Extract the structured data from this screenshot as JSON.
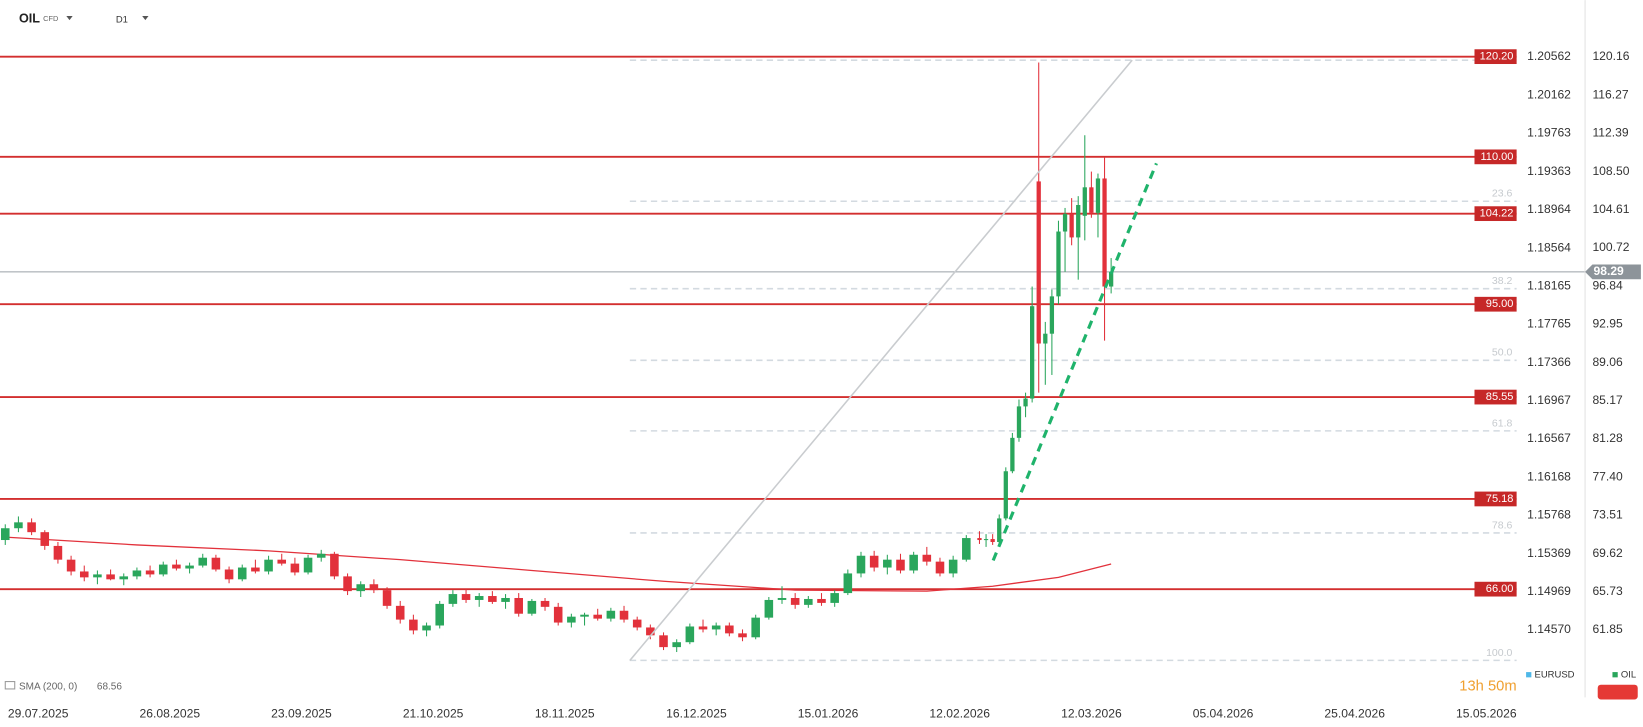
{
  "header": {
    "symbol": "OIL",
    "kind": "CFD",
    "interval": "D1"
  },
  "chart_data": {
    "type": "candlestick",
    "up_color": "#2aa65c",
    "down_color": "#e2313b",
    "x": [
      0,
      2,
      4,
      6,
      8,
      10,
      12,
      14,
      16,
      18,
      20,
      22,
      24,
      26,
      28,
      30,
      32,
      34,
      36,
      38,
      40,
      42,
      44,
      46,
      48,
      50,
      52,
      54,
      56,
      58,
      60,
      62,
      64,
      66,
      68,
      70,
      72,
      74,
      76,
      78,
      80,
      82,
      84,
      86,
      88,
      90,
      92,
      94,
      96,
      98,
      100,
      102,
      104,
      106,
      108,
      110,
      112,
      114,
      116,
      118,
      120,
      122,
      124,
      126,
      128,
      130,
      132,
      134,
      136,
      138,
      140,
      142,
      144,
      146,
      148,
      149,
      150,
      151,
      152,
      153,
      154,
      155,
      156,
      157,
      158,
      159,
      160,
      161,
      162,
      163,
      164,
      165,
      166,
      167,
      168
    ],
    "ohlc": [
      [
        71.0,
        72.6,
        70.5,
        72.2
      ],
      [
        72.2,
        73.4,
        71.8,
        72.8
      ],
      [
        72.8,
        73.2,
        71.5,
        71.8
      ],
      [
        71.8,
        72.0,
        70.0,
        70.4
      ],
      [
        70.4,
        70.8,
        68.6,
        69.0
      ],
      [
        69.0,
        69.4,
        67.4,
        67.8
      ],
      [
        67.8,
        68.4,
        66.8,
        67.2
      ],
      [
        67.2,
        67.9,
        66.5,
        67.5
      ],
      [
        67.5,
        68.0,
        66.9,
        67.0
      ],
      [
        67.0,
        67.6,
        66.4,
        67.3
      ],
      [
        67.3,
        68.2,
        67.0,
        67.9
      ],
      [
        67.9,
        68.4,
        67.2,
        67.5
      ],
      [
        67.5,
        68.8,
        67.3,
        68.5
      ],
      [
        68.5,
        69.0,
        67.9,
        68.1
      ],
      [
        68.1,
        68.7,
        67.6,
        68.4
      ],
      [
        68.4,
        69.6,
        68.2,
        69.2
      ],
      [
        69.2,
        69.5,
        67.8,
        68.0
      ],
      [
        68.0,
        68.3,
        66.6,
        67.0
      ],
      [
        67.0,
        68.5,
        66.8,
        68.2
      ],
      [
        68.2,
        69.0,
        67.6,
        67.8
      ],
      [
        67.8,
        69.4,
        67.5,
        69.0
      ],
      [
        69.0,
        69.6,
        68.4,
        68.6
      ],
      [
        68.6,
        69.2,
        67.4,
        67.7
      ],
      [
        67.7,
        69.5,
        67.5,
        69.2
      ],
      [
        69.2,
        70.0,
        68.8,
        69.6
      ],
      [
        69.6,
        69.8,
        67.0,
        67.3
      ],
      [
        67.3,
        67.6,
        65.4,
        65.8
      ],
      [
        65.8,
        66.8,
        65.2,
        66.5
      ],
      [
        66.5,
        67.0,
        65.6,
        65.9
      ],
      [
        65.9,
        66.2,
        64.0,
        64.3
      ],
      [
        64.3,
        64.8,
        62.5,
        62.9
      ],
      [
        62.9,
        63.4,
        61.4,
        61.8
      ],
      [
        61.8,
        62.6,
        61.2,
        62.3
      ],
      [
        62.3,
        64.8,
        62.0,
        64.5
      ],
      [
        64.5,
        65.9,
        64.2,
        65.5
      ],
      [
        65.5,
        66.0,
        64.6,
        64.9
      ],
      [
        64.9,
        65.6,
        64.2,
        65.3
      ],
      [
        65.3,
        65.8,
        64.5,
        64.7
      ],
      [
        64.7,
        65.5,
        64.0,
        65.1
      ],
      [
        65.1,
        65.6,
        63.2,
        63.5
      ],
      [
        63.5,
        65.0,
        63.3,
        64.8
      ],
      [
        64.8,
        65.1,
        63.8,
        64.2
      ],
      [
        64.2,
        64.6,
        62.3,
        62.6
      ],
      [
        62.6,
        63.5,
        62.1,
        63.2
      ],
      [
        63.2,
        63.6,
        62.3,
        63.4
      ],
      [
        63.4,
        64.0,
        62.8,
        63.0
      ],
      [
        63.0,
        64.1,
        62.7,
        63.8
      ],
      [
        63.8,
        64.3,
        62.6,
        62.9
      ],
      [
        62.9,
        63.2,
        61.8,
        62.1
      ],
      [
        62.1,
        62.4,
        60.9,
        61.3
      ],
      [
        61.3,
        61.6,
        59.8,
        60.1
      ],
      [
        60.1,
        60.9,
        59.6,
        60.6
      ],
      [
        60.6,
        62.5,
        60.4,
        62.2
      ],
      [
        62.2,
        62.9,
        61.6,
        61.9
      ],
      [
        61.9,
        62.6,
        61.3,
        62.3
      ],
      [
        62.3,
        62.6,
        61.2,
        61.5
      ],
      [
        61.5,
        61.9,
        60.7,
        61.1
      ],
      [
        61.1,
        63.4,
        60.9,
        63.1
      ],
      [
        63.1,
        65.2,
        62.9,
        64.9
      ],
      [
        64.9,
        66.3,
        64.5,
        65.1
      ],
      [
        65.1,
        65.6,
        64.0,
        64.4
      ],
      [
        64.4,
        65.3,
        64.1,
        65.0
      ],
      [
        65.0,
        65.6,
        64.3,
        64.6
      ],
      [
        64.6,
        65.9,
        64.2,
        65.6
      ],
      [
        65.6,
        68.0,
        65.4,
        67.6
      ],
      [
        67.6,
        69.8,
        67.2,
        69.4
      ],
      [
        69.4,
        69.9,
        67.8,
        68.2
      ],
      [
        68.2,
        69.5,
        67.5,
        69.0
      ],
      [
        69.0,
        69.6,
        67.6,
        67.9
      ],
      [
        67.9,
        69.8,
        67.6,
        69.5
      ],
      [
        69.5,
        70.3,
        68.4,
        68.8
      ],
      [
        68.8,
        69.2,
        67.3,
        67.6
      ],
      [
        67.6,
        69.4,
        67.2,
        69.0
      ],
      [
        69.0,
        71.5,
        68.8,
        71.2
      ],
      [
        71.2,
        71.9,
        70.6,
        71.0
      ],
      [
        71.0,
        71.6,
        70.3,
        71.1
      ],
      [
        71.1,
        71.6,
        70.5,
        70.8
      ],
      [
        70.8,
        73.6,
        70.6,
        73.2
      ],
      [
        73.2,
        78.4,
        73.0,
        78.0
      ],
      [
        78.0,
        81.9,
        77.8,
        81.4
      ],
      [
        81.4,
        85.3,
        81.0,
        84.6
      ],
      [
        84.6,
        86.0,
        83.5,
        85.4
      ],
      [
        85.4,
        96.8,
        85.0,
        94.8
      ],
      [
        107.5,
        119.6,
        86.0,
        91.0
      ],
      [
        91.0,
        93.2,
        86.8,
        92.0
      ],
      [
        92.0,
        96.5,
        87.8,
        95.8
      ],
      [
        95.8,
        103.5,
        95.0,
        102.4
      ],
      [
        102.4,
        104.8,
        98.3,
        104.2
      ],
      [
        104.2,
        105.8,
        101.0,
        101.8
      ],
      [
        101.8,
        106.0,
        97.5,
        105.1
      ],
      [
        104.0,
        112.2,
        101.5,
        106.9
      ],
      [
        106.9,
        108.5,
        103.8,
        104.3
      ],
      [
        104.3,
        108.3,
        101.8,
        107.8
      ],
      [
        107.8,
        110.0,
        91.3,
        96.8
      ],
      [
        96.8,
        99.7,
        96.1,
        98.29
      ]
    ],
    "xlim": [
      0,
      230
    ],
    "xticks": [
      {
        "value": 5,
        "label": "29.07.2025"
      },
      {
        "value": 25,
        "label": "26.08.2025"
      },
      {
        "value": 45,
        "label": "23.09.2025"
      },
      {
        "value": 65,
        "label": "21.10.2025"
      },
      {
        "value": 85,
        "label": "18.11.2025"
      },
      {
        "value": 105,
        "label": "16.12.2025"
      },
      {
        "value": 125,
        "label": "15.01.2026"
      },
      {
        "value": 145,
        "label": "12.02.2026"
      },
      {
        "value": 165,
        "label": "12.03.2026"
      },
      {
        "value": 185,
        "label": "05.04.2026"
      },
      {
        "value": 205,
        "label": "25.04.2026"
      },
      {
        "value": 225,
        "label": "15.05.2026"
      }
    ],
    "ylim": [
      55.2,
      125.95
    ],
    "yticks": [
      120.16,
      116.27,
      112.39,
      {
        "value": 108.5,
        "label": "108.50"
      },
      104.61,
      100.72,
      96.84,
      92.95,
      89.06,
      85.17,
      81.28,
      {
        "value": 77.4,
        "label": "77.40"
      },
      73.51,
      69.62,
      65.73,
      61.85
    ],
    "y2lim": [
      1.13887,
      1.21157
    ],
    "y2ticks": [
      1.20562,
      1.20162,
      1.19763,
      1.19363,
      1.18964,
      1.18564,
      1.18165,
      1.17765,
      1.17366,
      1.16967,
      1.16567,
      1.16168,
      1.15768,
      1.15369,
      1.14969,
      {
        "value": 1.1457,
        "label": "1.14570"
      }
    ],
    "levels": [
      {
        "value": 120.2,
        "label": "120.20"
      },
      {
        "value": 110,
        "label": "110.00"
      },
      {
        "value": 104.22,
        "label": "104.22"
      },
      {
        "value": 95,
        "label": "95.00"
      },
      {
        "value": 85.55,
        "label": "85.55"
      },
      {
        "value": 75.18,
        "label": "75.18"
      },
      {
        "value": 66,
        "label": "66.00"
      }
    ],
    "fib": [
      {
        "price": 119.84
      },
      {
        "price": 105.48,
        "label": "23.6"
      },
      {
        "price": 96.58,
        "label": "38.2"
      },
      {
        "price": 89.29,
        "label": "50.0"
      },
      {
        "price": 82.11,
        "label": "61.8"
      },
      {
        "price": 71.72,
        "label": "78.6"
      },
      {
        "price": 58.75,
        "label": "100.0"
      }
    ],
    "last_price": 98.29,
    "sma": {
      "name": "SMA (200, 0)",
      "value": 68.56,
      "color": "#e2313b",
      "x": [
        0,
        20,
        40,
        60,
        80,
        100,
        120,
        140,
        150,
        160,
        168
      ],
      "values": [
        71.3,
        70.5,
        69.9,
        69.0,
        67.9,
        66.8,
        65.9,
        65.8,
        66.3,
        67.2,
        68.56
      ]
    },
    "legend": [
      {
        "name": "EURUSD",
        "color": "#4fb8e8"
      },
      {
        "name": "OIL",
        "color": "#2aa65c"
      }
    ],
    "countdown": "13h 50m"
  }
}
